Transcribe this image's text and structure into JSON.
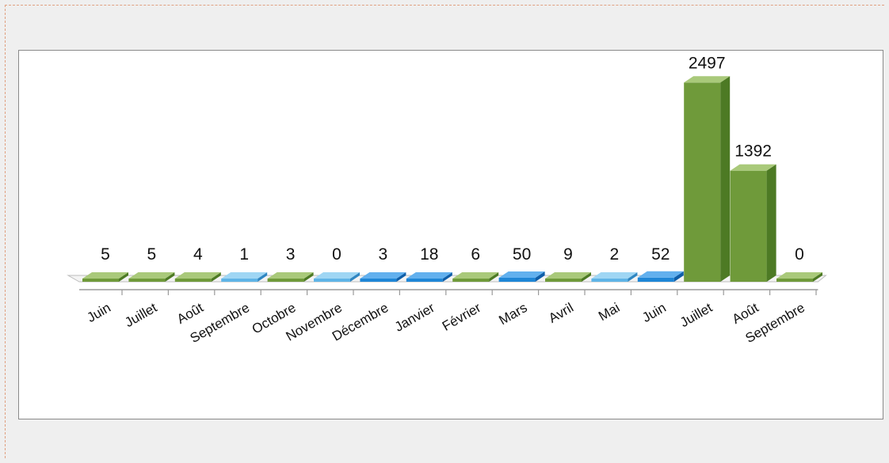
{
  "chart_data": {
    "type": "bar",
    "title": "",
    "xlabel": "",
    "ylabel": "",
    "categories": [
      "Juin",
      "Juillet",
      "Août",
      "Septembre",
      "Octobre",
      "Novembre",
      "Décembre",
      "Janvier",
      "Février",
      "Mars",
      "Avril",
      "Mai",
      "Juin",
      "Juillet",
      "Août",
      "Septembre"
    ],
    "values": [
      5,
      5,
      4,
      1,
      3,
      0,
      3,
      18,
      6,
      50,
      9,
      2,
      52,
      2497,
      1392,
      0
    ],
    "bar_colors": [
      "green",
      "green",
      "green",
      "light-blue",
      "green",
      "light-blue",
      "blue",
      "blue",
      "green",
      "blue",
      "green",
      "light-blue",
      "blue",
      "green",
      "green",
      "green"
    ],
    "ylim": [
      0,
      2500
    ],
    "grid": false,
    "legend": "none",
    "style": "3d-bars"
  },
  "colors": {
    "green": [
      "#6f9a3a",
      "#4d7a24",
      "#a9c97a"
    ],
    "light-blue": [
      "#5fb4e6",
      "#2f86c2",
      "#9fd6f4"
    ],
    "blue": [
      "#1f86d6",
      "#0f5ea8",
      "#62b0ee"
    ],
    "background": "#efefef",
    "frame_border": "#8a8a8a"
  }
}
